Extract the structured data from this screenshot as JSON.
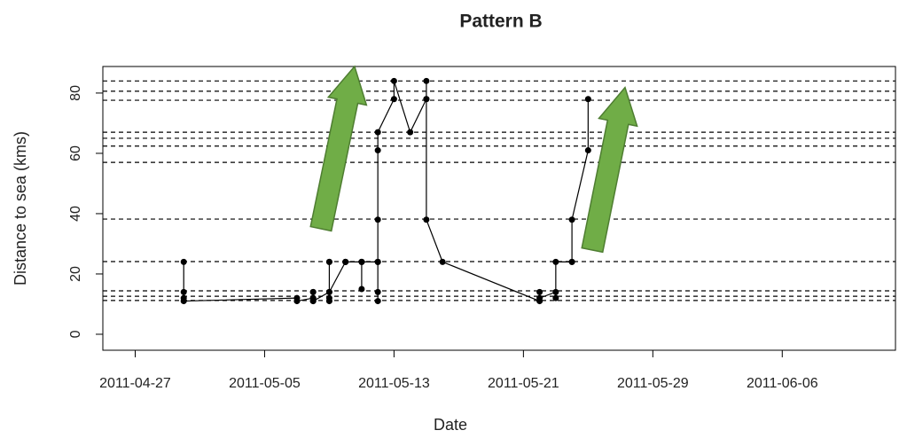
{
  "chart_data": {
    "type": "line",
    "title": "Pattern B",
    "x_label": "Date",
    "y_label": "Distance to sea (kms)",
    "x": [
      "2011-04-30",
      "2011-04-30",
      "2011-04-30",
      "2011-04-30",
      "2011-05-07",
      "2011-05-07",
      "2011-05-08",
      "2011-05-08",
      "2011-05-08",
      "2011-05-08",
      "2011-05-08",
      "2011-05-08",
      "2011-05-09",
      "2011-05-09",
      "2011-05-09",
      "2011-05-09",
      "2011-05-09",
      "2011-05-09",
      "2011-05-10",
      "2011-05-10",
      "2011-05-10",
      "2011-05-11",
      "2011-05-11",
      "2011-05-11",
      "2011-05-11",
      "2011-05-12",
      "2011-05-12",
      "2011-05-12",
      "2011-05-12",
      "2011-05-12",
      "2011-05-12",
      "2011-05-12",
      "2011-05-12",
      "2011-05-13",
      "2011-05-13",
      "2011-05-14",
      "2011-05-15",
      "2011-05-15",
      "2011-05-15",
      "2011-05-15",
      "2011-05-16",
      "2011-05-22",
      "2011-05-22",
      "2011-05-22",
      "2011-05-23",
      "2011-05-23",
      "2011-05-23",
      "2011-05-24",
      "2011-05-24",
      "2011-05-24",
      "2011-05-25",
      "2011-05-25"
    ],
    "values": [
      24,
      14,
      12,
      11,
      12,
      11,
      12,
      14,
      11,
      14,
      12,
      11,
      14,
      12,
      11,
      24,
      24,
      14,
      24,
      24,
      24,
      24,
      15,
      24,
      24,
      24,
      14,
      11,
      24,
      24,
      38,
      61,
      67,
      78,
      84,
      67,
      78,
      84,
      78,
      38,
      24,
      11,
      14,
      12,
      14,
      12,
      24,
      24,
      24,
      38,
      61,
      78
    ],
    "color": "#000000",
    "hlines": [
      84,
      80.6,
      77.6,
      67,
      65,
      62.4,
      57,
      38.2,
      24.1,
      14.4,
      12.6,
      11.2
    ],
    "xlim": [
      "2011-04-25",
      "2011-06-13"
    ],
    "xticks": [
      "2011-04-27",
      "2011-05-05",
      "2011-05-13",
      "2011-05-21",
      "2011-05-29",
      "2011-06-06"
    ],
    "ylim": [
      -5.3,
      88.8
    ],
    "yticks": [
      0,
      20,
      40,
      60,
      80
    ]
  }
}
